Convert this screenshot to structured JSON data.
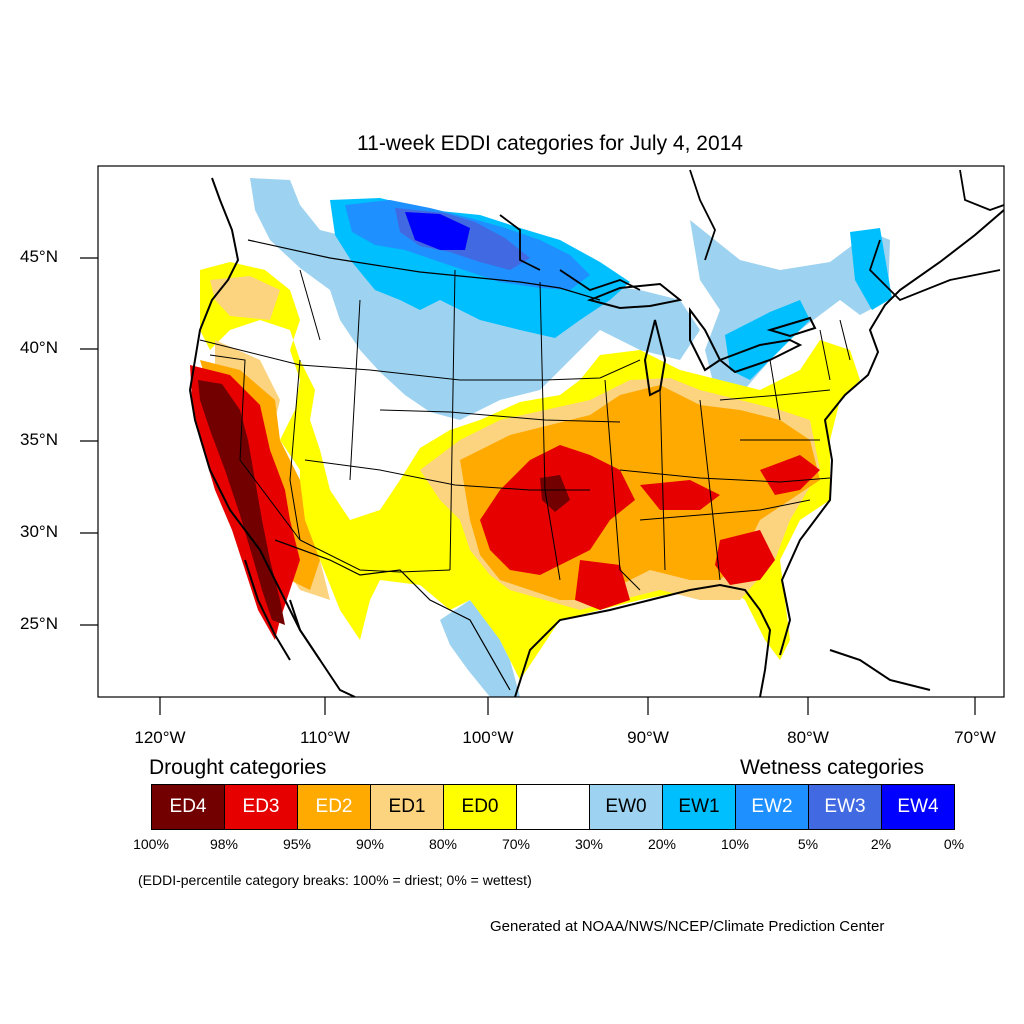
{
  "title": "11-week EDDI categories for July 4, 2014",
  "lat_labels": [
    "45°N",
    "40°N",
    "35°N",
    "30°N",
    "25°N"
  ],
  "lon_labels": [
    "120°W",
    "110°W",
    "100°W",
    "90°W",
    "80°W",
    "70°W"
  ],
  "legend": {
    "drought_heading": "Drought categories",
    "wetness_heading": "Wetness categories",
    "categories": [
      {
        "label": "ED4",
        "color": "#730000"
      },
      {
        "label": "ED3",
        "color": "#e60000"
      },
      {
        "label": "ED2",
        "color": "#ffaa00"
      },
      {
        "label": "ED1",
        "color": "#fcd37f"
      },
      {
        "label": "ED0",
        "color": "#ffff00"
      },
      {
        "label": "",
        "color": "#ffffff"
      },
      {
        "label": "EW0",
        "color": "#9dd3f0"
      },
      {
        "label": "EW1",
        "color": "#00bfff"
      },
      {
        "label": "EW2",
        "color": "#1e90ff"
      },
      {
        "label": "EW3",
        "color": "#4169e1"
      },
      {
        "label": "EW4",
        "color": "#0000ff"
      }
    ],
    "percent_breaks": [
      "100%",
      "98%",
      "95%",
      "90%",
      "80%",
      "70%",
      "30%",
      "20%",
      "10%",
      "5%",
      "2%",
      "0%"
    ]
  },
  "note": "(EDDI-percentile category breaks: 100% = driest; 0% = wettest)",
  "credit": "Generated at NOAA/NWS/NCEP/Climate Prediction Center"
}
